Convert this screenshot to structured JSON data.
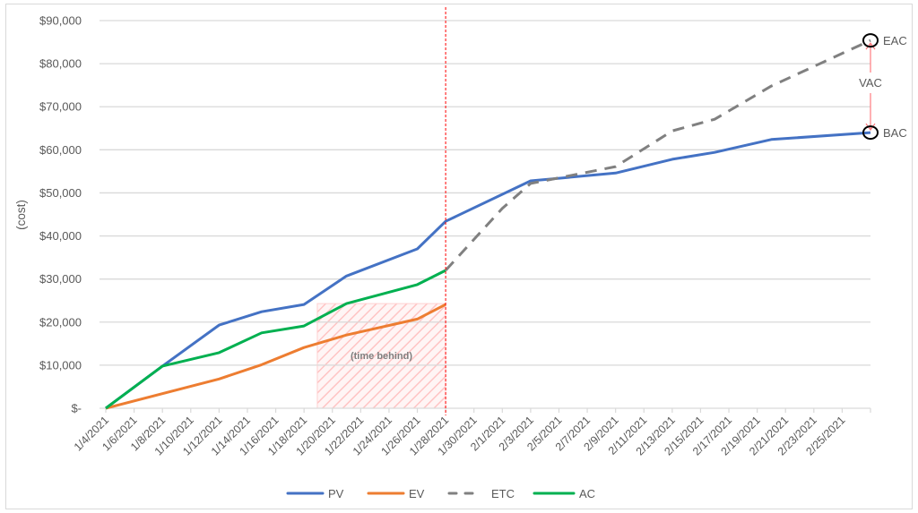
{
  "chart_data": {
    "type": "line",
    "title": "",
    "xlabel": "",
    "ylabel": "(cost)",
    "ylim": [
      0,
      90000
    ],
    "yticks": [
      0,
      10000,
      20000,
      30000,
      40000,
      50000,
      60000,
      70000,
      80000,
      90000
    ],
    "ytick_labels": [
      "$-",
      "$10,000",
      "$20,000",
      "$30,000",
      "$40,000",
      "$50,000",
      "$60,000",
      "$70,000",
      "$80,000",
      "$90,000"
    ],
    "xtick_labels": [
      "1/4/2021",
      "1/6/2021",
      "1/8/2021",
      "1/10/2021",
      "1/12/2021",
      "1/14/2021",
      "1/16/2021",
      "1/18/2021",
      "1/20/2021",
      "1/22/2021",
      "1/24/2021",
      "1/26/2021",
      "1/28/2021",
      "1/30/2021",
      "2/1/2021",
      "2/3/2021",
      "2/5/2021",
      "2/7/2021",
      "2/9/2021",
      "2/11/2021",
      "2/13/2021",
      "2/15/2021",
      "2/17/2021",
      "2/19/2021",
      "2/21/2021",
      "2/23/2021",
      "2/25/2021"
    ],
    "grid": true,
    "legend_position": "bottom",
    "series": [
      {
        "name": "PV",
        "color": "#4472C4",
        "style": "solid",
        "points": [
          [
            "1/4/2021",
            0
          ],
          [
            "1/8/2021",
            9800
          ],
          [
            "1/12/2021",
            19300
          ],
          [
            "1/15/2021",
            22400
          ],
          [
            "1/18/2021",
            24100
          ],
          [
            "1/21/2021",
            30700
          ],
          [
            "1/26/2021",
            37000
          ],
          [
            "1/28/2021",
            43400
          ],
          [
            "2/3/2021",
            52800
          ],
          [
            "2/9/2021",
            54600
          ],
          [
            "2/13/2021",
            57800
          ],
          [
            "2/16/2021",
            59400
          ],
          [
            "2/20/2021",
            62400
          ],
          [
            "2/27/2021",
            64000
          ]
        ]
      },
      {
        "name": "EV",
        "color": "#ED7D31",
        "style": "solid",
        "points": [
          [
            "1/4/2021",
            0
          ],
          [
            "1/12/2021",
            6800
          ],
          [
            "1/15/2021",
            10100
          ],
          [
            "1/18/2021",
            14100
          ],
          [
            "1/21/2021",
            17000
          ],
          [
            "1/26/2021",
            20700
          ],
          [
            "1/28/2021",
            24100
          ]
        ]
      },
      {
        "name": "ETC",
        "color": "#808080",
        "style": "dashed",
        "points": [
          [
            "1/28/2021",
            32000
          ],
          [
            "2/1/2021",
            46400
          ],
          [
            "2/3/2021",
            52200
          ],
          [
            "2/9/2021",
            56100
          ],
          [
            "2/13/2021",
            64400
          ],
          [
            "2/16/2021",
            67100
          ],
          [
            "2/20/2021",
            74800
          ],
          [
            "2/27/2021",
            85400
          ]
        ]
      },
      {
        "name": "AC",
        "color": "#00B050",
        "style": "solid",
        "points": [
          [
            "1/4/2021",
            0
          ],
          [
            "1/8/2021",
            9800
          ],
          [
            "1/12/2021",
            12900
          ],
          [
            "1/15/2021",
            17500
          ],
          [
            "1/18/2021",
            19100
          ],
          [
            "1/21/2021",
            24300
          ],
          [
            "1/26/2021",
            28700
          ],
          [
            "1/28/2021",
            32000
          ]
        ]
      }
    ],
    "annotations": {
      "status_date_line": {
        "date": "1/28/2021",
        "color": "#FF0000",
        "style": "dotted"
      },
      "time_behind_box": {
        "label": "(time behind)",
        "x_start": "1/19/2021",
        "x_end": "1/28/2021",
        "y_top": 24300,
        "y_bottom": 0,
        "color": "#FF9999"
      },
      "EAC": {
        "label": "EAC",
        "value": 85400
      },
      "BAC": {
        "label": "BAC",
        "value": 64000
      },
      "VAC": {
        "label": "VAC"
      }
    }
  },
  "legend": [
    {
      "label": "PV",
      "color": "#4472C4",
      "dashed": false
    },
    {
      "label": "EV",
      "color": "#ED7D31",
      "dashed": false
    },
    {
      "label": "ETC",
      "color": "#808080",
      "dashed": true
    },
    {
      "label": "AC",
      "color": "#00B050",
      "dashed": false
    }
  ]
}
